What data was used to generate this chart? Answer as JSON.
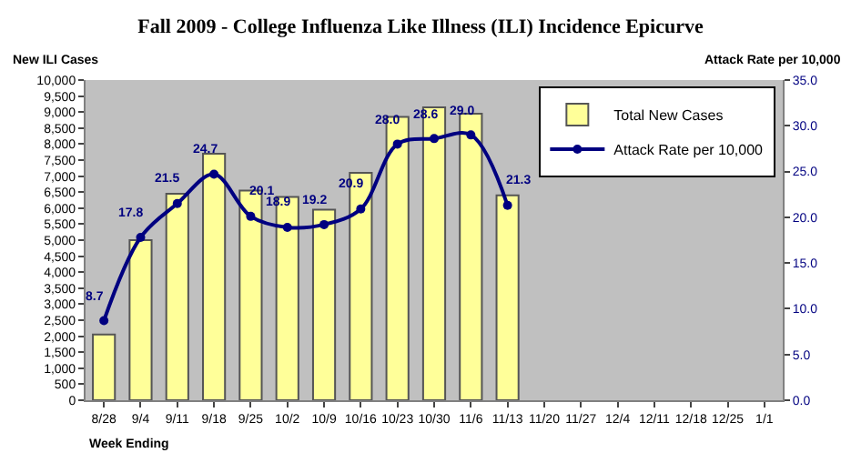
{
  "chart_data": {
    "type": "bar",
    "title": "Fall 2009 - College Influenza Like Illness (ILI) Incidence Epicurve",
    "xlabel": "Week Ending",
    "ylabel": "New ILI Cases",
    "y2label": "Attack Rate per 10,000",
    "categories": [
      "8/28",
      "9/4",
      "9/11",
      "9/18",
      "9/25",
      "10/2",
      "10/9",
      "10/16",
      "10/23",
      "10/30",
      "11/6",
      "11/13",
      "11/20",
      "11/27",
      "12/4",
      "12/11",
      "12/18",
      "12/25",
      "1/1"
    ],
    "series": [
      {
        "name": "Total New Cases",
        "color": "#ffff99",
        "values": [
          2050,
          5000,
          6450,
          7700,
          6550,
          6350,
          5950,
          7100,
          8850,
          9150,
          8950,
          6400,
          null,
          null,
          null,
          null,
          null,
          null,
          null
        ]
      },
      {
        "name": "Attack Rate per 10,000",
        "type": "line",
        "axis": "y2",
        "color": "#000080",
        "marker": "circle",
        "values": [
          8.7,
          17.8,
          21.5,
          24.7,
          20.1,
          18.9,
          19.2,
          20.9,
          28.0,
          28.6,
          29.0,
          21.3,
          null,
          null,
          null,
          null,
          null,
          null,
          null
        ],
        "value_labels": [
          "8.7",
          "17.8",
          "21.5",
          "24.7",
          "20.1",
          "18.9",
          "19.2",
          "20.9",
          "28.0",
          "28.6",
          "29.0",
          "21.3",
          null,
          null,
          null,
          null,
          null,
          null,
          null
        ]
      }
    ],
    "ylim": [
      0,
      10000
    ],
    "yticks": [
      0,
      {
        "value": 500,
        "label": "500"
      },
      {
        "value": 1000,
        "label": "1,000"
      },
      {
        "value": 1500,
        "label": "1,500"
      },
      {
        "value": 2000,
        "label": "2,000"
      },
      {
        "value": 2500,
        "label": "2,500"
      },
      {
        "value": 3000,
        "label": "3,000"
      },
      {
        "value": 3500,
        "label": "3,500"
      },
      {
        "value": 4000,
        "label": "4,000"
      },
      {
        "value": 4500,
        "label": "4,500"
      },
      {
        "value": 5000,
        "label": "5,000"
      },
      {
        "value": 5500,
        "label": "5,500"
      },
      {
        "value": 6000,
        "label": "6,000"
      },
      {
        "value": 6500,
        "label": "6,500"
      },
      {
        "value": 7000,
        "label": "7,000"
      },
      {
        "value": 7500,
        "label": "7,500"
      },
      {
        "value": 8000,
        "label": "8,000"
      },
      {
        "value": 8500,
        "label": "8,500"
      },
      {
        "value": 9000,
        "label": "9,000"
      },
      {
        "value": 9500,
        "label": "9,500"
      },
      {
        "value": 10000,
        "label": "10,000"
      }
    ],
    "y2lim": [
      0,
      35
    ],
    "y2ticks": [
      {
        "value": 0,
        "label": "0.0"
      },
      {
        "value": 5,
        "label": "5.0"
      },
      {
        "value": 10,
        "label": "10.0"
      },
      {
        "value": 15,
        "label": "15.0"
      },
      {
        "value": 20,
        "label": "20.0"
      },
      {
        "value": 25,
        "label": "25.0"
      },
      {
        "value": 30,
        "label": "30.0"
      },
      {
        "value": 35,
        "label": "35.0"
      }
    ],
    "grid": false,
    "legend": "top right"
  }
}
